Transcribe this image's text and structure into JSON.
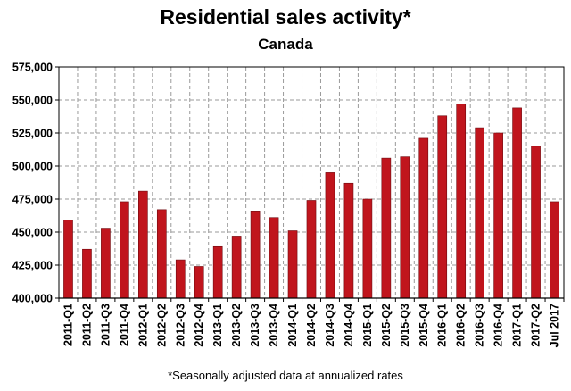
{
  "chart_data": {
    "type": "bar",
    "title": "Residential sales activity*",
    "subtitle": "Canada",
    "footnote": "*Seasonally adjusted data at annualized rates",
    "xlabel": "",
    "ylabel": "",
    "ylim": [
      400000,
      575000
    ],
    "yticks": [
      400000,
      425000,
      450000,
      475000,
      500000,
      525000,
      550000,
      575000
    ],
    "ytick_labels": [
      "400,000",
      "425,000",
      "450,000",
      "475,000",
      "500,000",
      "525,000",
      "550,000",
      "575,000"
    ],
    "grid": true,
    "bar_color": "#c0151d",
    "categories": [
      "2011-Q1",
      "2011-Q2",
      "2011-Q3",
      "2011-Q4",
      "2012-Q1",
      "2012-Q2",
      "2012-Q3",
      "2012-Q4",
      "2013-Q1",
      "2013-Q2",
      "2013-Q3",
      "2013-Q4",
      "2014-Q1",
      "2014-Q2",
      "2014-Q3",
      "2014-Q4",
      "2015-Q1",
      "2015-Q2",
      "2015-Q3",
      "2015-Q4",
      "2016-Q1",
      "2016-Q2",
      "2016-Q3",
      "2016-Q4",
      "2017-Q1",
      "2017-Q2",
      "Jul 2017"
    ],
    "values": [
      459000,
      437000,
      453000,
      473000,
      481000,
      467000,
      429000,
      424000,
      439000,
      447000,
      466000,
      461000,
      451000,
      474000,
      495000,
      487000,
      475000,
      506000,
      507000,
      521000,
      538000,
      547000,
      529000,
      525000,
      544000,
      515000,
      473000
    ]
  }
}
